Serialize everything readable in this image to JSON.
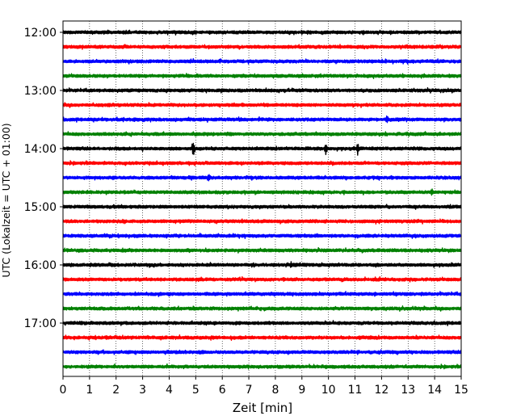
{
  "chart_data": {
    "type": "line",
    "title": "",
    "xlabel": "Zeit  [min]",
    "ylabel": "UTC (Lokalzeit = UTC + 01:00)",
    "xlim": [
      0,
      15
    ],
    "x_ticks": [
      "0",
      "1",
      "2",
      "3",
      "4",
      "5",
      "6",
      "7",
      "8",
      "9",
      "10",
      "11",
      "12",
      "13",
      "14",
      "15"
    ],
    "y_ticks": [
      "12:00",
      "13:00",
      "14:00",
      "15:00",
      "16:00",
      "17:00"
    ],
    "grid": "vertical-dotted",
    "colors": [
      "#000000",
      "#ff0000",
      "#0000ff",
      "#008000"
    ],
    "traces": [
      {
        "start": "12:00",
        "color": "#000000",
        "events": []
      },
      {
        "start": "12:15",
        "color": "#ff0000",
        "events": []
      },
      {
        "start": "12:30",
        "color": "#0000ff",
        "events": []
      },
      {
        "start": "12:45",
        "color": "#008000",
        "events": []
      },
      {
        "start": "13:00",
        "color": "#000000",
        "events": []
      },
      {
        "start": "13:15",
        "color": "#ff0000",
        "events": []
      },
      {
        "start": "13:30",
        "color": "#0000ff",
        "events": [
          {
            "t": 12.2,
            "amp": 0.25
          }
        ]
      },
      {
        "start": "13:45",
        "color": "#008000",
        "events": []
      },
      {
        "start": "14:00",
        "color": "#000000",
        "events": [
          {
            "t": 4.9,
            "amp": 1.0
          },
          {
            "t": 9.9,
            "amp": 0.6
          },
          {
            "t": 11.1,
            "amp": 0.55
          }
        ]
      },
      {
        "start": "14:15",
        "color": "#ff0000",
        "events": []
      },
      {
        "start": "14:30",
        "color": "#0000ff",
        "events": [
          {
            "t": 5.5,
            "amp": 0.3
          }
        ]
      },
      {
        "start": "14:45",
        "color": "#008000",
        "events": [
          {
            "t": 13.9,
            "amp": 0.25
          }
        ]
      },
      {
        "start": "15:00",
        "color": "#000000",
        "events": []
      },
      {
        "start": "15:15",
        "color": "#ff0000",
        "events": []
      },
      {
        "start": "15:30",
        "color": "#0000ff",
        "events": []
      },
      {
        "start": "15:45",
        "color": "#008000",
        "events": []
      },
      {
        "start": "16:00",
        "color": "#000000",
        "events": [
          {
            "t": 8.6,
            "amp": 0.25
          }
        ]
      },
      {
        "start": "16:15",
        "color": "#ff0000",
        "events": []
      },
      {
        "start": "16:30",
        "color": "#0000ff",
        "events": []
      },
      {
        "start": "16:45",
        "color": "#008000",
        "events": []
      },
      {
        "start": "17:00",
        "color": "#000000",
        "events": []
      },
      {
        "start": "17:15",
        "color": "#ff0000",
        "events": []
      },
      {
        "start": "17:30",
        "color": "#0000ff",
        "events": []
      },
      {
        "start": "17:45",
        "color": "#008000",
        "events": []
      }
    ]
  }
}
